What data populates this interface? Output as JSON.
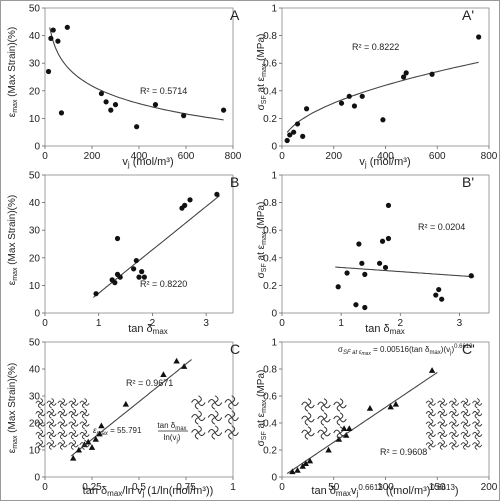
{
  "chart_data": [
    {
      "panel": "A",
      "type": "scatter",
      "xlabel": "v_j (mol/m³)",
      "ylabel": "ε_max (Max Strain)(%)",
      "xlim": [
        0,
        800
      ],
      "ylim": [
        0,
        50
      ],
      "xticks": [
        "0",
        "200",
        "400",
        "600",
        "800"
      ],
      "xtick_values": [
        0,
        200,
        400,
        600,
        800
      ],
      "yticks": [
        "0",
        "10",
        "20",
        "30",
        "40",
        "50"
      ],
      "ytick_values": [
        0,
        10,
        20,
        30,
        40,
        50
      ],
      "points": [
        [
          15,
          27
        ],
        [
          25,
          39
        ],
        [
          35,
          42
        ],
        [
          55,
          38
        ],
        [
          70,
          12
        ],
        [
          95,
          43
        ],
        [
          240,
          19
        ],
        [
          260,
          16
        ],
        [
          280,
          13
        ],
        [
          300,
          15
        ],
        [
          390,
          7
        ],
        [
          470,
          15
        ],
        [
          590,
          11
        ],
        [
          760,
          13
        ]
      ],
      "trend": {
        "kind": "log",
        "from": 20,
        "to": 760,
        "a": 70.5,
        "b": -9.2
      },
      "annotation": "R² = 0.5714",
      "grid": false
    },
    {
      "panel": "A'",
      "type": "scatter",
      "xlabel": "v_j (mol/m³)",
      "ylabel": "σ_SF at ε_max (MPa)",
      "xlim": [
        0,
        800
      ],
      "ylim": [
        0,
        1
      ],
      "xticks": [
        "0",
        "200",
        "400",
        "600",
        "800"
      ],
      "xtick_values": [
        0,
        200,
        400,
        600,
        800
      ],
      "yticks": [
        "0",
        "0.2",
        "0.4",
        "0.6",
        "0.8",
        "1"
      ],
      "ytick_values": [
        0,
        0.2,
        0.4,
        0.6,
        0.8,
        1
      ],
      "points": [
        [
          20,
          0.04
        ],
        [
          30,
          0.08
        ],
        [
          45,
          0.1
        ],
        [
          60,
          0.16
        ],
        [
          80,
          0.07
        ],
        [
          95,
          0.27
        ],
        [
          230,
          0.31
        ],
        [
          260,
          0.36
        ],
        [
          280,
          0.29
        ],
        [
          310,
          0.36
        ],
        [
          390,
          0.19
        ],
        [
          470,
          0.5
        ],
        [
          480,
          0.53
        ],
        [
          580,
          0.52
        ],
        [
          760,
          0.79
        ]
      ],
      "trend": {
        "kind": "power",
        "from": 20,
        "to": 760,
        "a": 0.022,
        "b": 0.5
      },
      "annotation": "R² = 0.8222",
      "grid": false
    },
    {
      "panel": "B",
      "type": "scatter",
      "xlabel": "tan δ_max",
      "ylabel": "ε_max (Max Strain)(%)",
      "xlim": [
        0,
        3.5
      ],
      "ylim": [
        0,
        50
      ],
      "xticks": [
        "0",
        "1",
        "2",
        "3"
      ],
      "xtick_values": [
        0,
        1,
        2,
        3
      ],
      "yticks": [
        "0",
        "10",
        "20",
        "30",
        "40",
        "50"
      ],
      "ytick_values": [
        0,
        10,
        20,
        30,
        40,
        50
      ],
      "points": [
        [
          0.95,
          7
        ],
        [
          1.25,
          12
        ],
        [
          1.3,
          11
        ],
        [
          1.35,
          14
        ],
        [
          1.35,
          27
        ],
        [
          1.4,
          13
        ],
        [
          1.65,
          16
        ],
        [
          1.7,
          19
        ],
        [
          1.75,
          13
        ],
        [
          1.8,
          15
        ],
        [
          1.85,
          13
        ],
        [
          2.55,
          38
        ],
        [
          2.6,
          39
        ],
        [
          2.7,
          41
        ],
        [
          3.2,
          43
        ]
      ],
      "trend": {
        "kind": "linear",
        "from": 0.9,
        "to": 3.25,
        "a": -8.5,
        "b": 15.7
      },
      "annotation": "R² = 0.8220",
      "grid": false
    },
    {
      "panel": "B'",
      "type": "scatter",
      "xlabel": "tan δ_max",
      "ylabel": "σ_SF at ε_max (MPa)",
      "xlim": [
        0,
        3.5
      ],
      "ylim": [
        0,
        1
      ],
      "xticks": [
        "0",
        "1",
        "2",
        "3"
      ],
      "xtick_values": [
        0,
        1,
        2,
        3
      ],
      "yticks": [
        "0",
        "0.2",
        "0.4",
        "0.6",
        "0.8",
        "1"
      ],
      "ytick_values": [
        0,
        0.2,
        0.4,
        0.6,
        0.8,
        1
      ],
      "points": [
        [
          0.95,
          0.19
        ],
        [
          1.1,
          0.29
        ],
        [
          1.25,
          0.06
        ],
        [
          1.3,
          0.5
        ],
        [
          1.35,
          0.36
        ],
        [
          1.4,
          0.04
        ],
        [
          1.4,
          0.28
        ],
        [
          1.65,
          0.36
        ],
        [
          1.7,
          0.52
        ],
        [
          1.75,
          0.33
        ],
        [
          1.8,
          0.54
        ],
        [
          1.8,
          0.78
        ],
        [
          2.6,
          0.13
        ],
        [
          2.65,
          0.17
        ],
        [
          2.7,
          0.1
        ],
        [
          3.2,
          0.27
        ]
      ],
      "trend": {
        "kind": "linear",
        "from": 0.9,
        "to": 3.25,
        "a": 0.36,
        "b": -0.03
      },
      "annotation": "R² = 0.0204",
      "grid": false
    },
    {
      "panel": "C",
      "type": "scatter",
      "marker": "triangle",
      "xlabel": "tan δ_max/ln v_j (1/ln(mol/m³))",
      "ylabel": "ε_max (Max Strain)(%)",
      "xlim": [
        0,
        1
      ],
      "ylim": [
        0,
        50
      ],
      "xticks": [
        "0",
        "0.25",
        "0.5",
        "0.75",
        "1"
      ],
      "xtick_values": [
        0,
        0.25,
        0.5,
        0.75,
        1
      ],
      "yticks": [
        "0",
        "10",
        "20",
        "30",
        "40",
        "50"
      ],
      "ytick_values": [
        0,
        10,
        20,
        30,
        40,
        50
      ],
      "points": [
        [
          0.15,
          7
        ],
        [
          0.18,
          10
        ],
        [
          0.21,
          12
        ],
        [
          0.23,
          13
        ],
        [
          0.25,
          11
        ],
        [
          0.27,
          14
        ],
        [
          0.29,
          16
        ],
        [
          0.3,
          19
        ],
        [
          0.43,
          27
        ],
        [
          0.63,
          38
        ],
        [
          0.7,
          43
        ],
        [
          0.74,
          41
        ]
      ],
      "trend": {
        "kind": "linear",
        "from": 0.14,
        "to": 0.78,
        "a": 0,
        "b": 55.791
      },
      "annotation": "R² = 0.9671",
      "grid": false
    },
    {
      "panel": "C'",
      "type": "scatter",
      "marker": "triangle",
      "xlabel": "tan δ_max v_j^0.6613 ((mol/m³)^0.6613)",
      "ylabel": "σ_SF at ε_max (MPa)",
      "xlim": [
        0,
        200
      ],
      "ylim": [
        0,
        1
      ],
      "xticks": [
        "0",
        "50",
        "100",
        "150",
        "200"
      ],
      "xtick_values": [
        0,
        50,
        100,
        150,
        200
      ],
      "yticks": [
        "0",
        "0.2",
        "0.4",
        "0.6",
        "0.8",
        "1"
      ],
      "ytick_values": [
        0,
        0.2,
        0.4,
        0.6,
        0.8,
        1
      ],
      "points": [
        [
          10,
          0.04
        ],
        [
          15,
          0.05
        ],
        [
          20,
          0.08
        ],
        [
          23,
          0.1
        ],
        [
          27,
          0.12
        ],
        [
          45,
          0.2
        ],
        [
          55,
          0.28
        ],
        [
          60,
          0.36
        ],
        [
          62,
          0.31
        ],
        [
          65,
          0.36
        ],
        [
          85,
          0.51
        ],
        [
          105,
          0.52
        ],
        [
          110,
          0.54
        ],
        [
          145,
          0.79
        ]
      ],
      "trend": {
        "kind": "linear",
        "from": 5,
        "to": 150,
        "a": 0,
        "b": 0.00516
      },
      "annotation": "R² = 0.9608",
      "grid": false
    }
  ],
  "panel_labels": [
    "A",
    "A'",
    "B",
    "B'",
    "C",
    "C'"
  ],
  "equations": {
    "C": "ε_max = 55.791 tan δ_max / ln(v_j)",
    "C'": "σ_SF at ε_max = 0.00516(tan δ_max)(v_j)^0.6613"
  },
  "colors": {
    "marker": "#111111",
    "line": "#444444",
    "axis": "#666666",
    "frame": "#888888"
  }
}
